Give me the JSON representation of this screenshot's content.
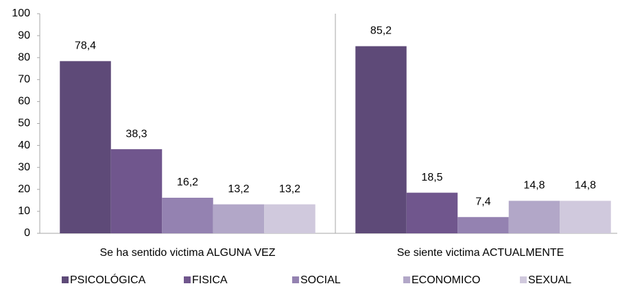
{
  "chart_data": {
    "type": "bar",
    "categories": [
      "Se ha sentido victima ALGUNA VEZ",
      "Se siente victima ACTUALMENTE"
    ],
    "series": [
      {
        "name": "PSICOLÓGICA",
        "color": "#5e4a78",
        "values": [
          78.4,
          85.2
        ],
        "value_labels": [
          "78,4",
          "85,2"
        ]
      },
      {
        "name": "FISICA",
        "color": "#70568d",
        "values": [
          38.3,
          18.5
        ],
        "value_labels": [
          "38,3",
          "18,5"
        ]
      },
      {
        "name": "SOCIAL",
        "color": "#9482b1",
        "values": [
          16.2,
          7.4
        ],
        "value_labels": [
          "16,2",
          "7,4"
        ]
      },
      {
        "name": "ECONOMICO",
        "color": "#b2a7c8",
        "values": [
          13.2,
          14.8
        ],
        "value_labels": [
          "13,2",
          "14,8"
        ]
      },
      {
        "name": "SEXUAL",
        "color": "#d0c9dd",
        "values": [
          13.2,
          14.8
        ],
        "value_labels": [
          "13,2",
          "14,8"
        ]
      }
    ],
    "ylim": [
      0,
      100
    ],
    "yticks": [
      0,
      10,
      20,
      30,
      40,
      50,
      60,
      70,
      80,
      90,
      100
    ],
    "grid": false,
    "legend": "bottom"
  }
}
